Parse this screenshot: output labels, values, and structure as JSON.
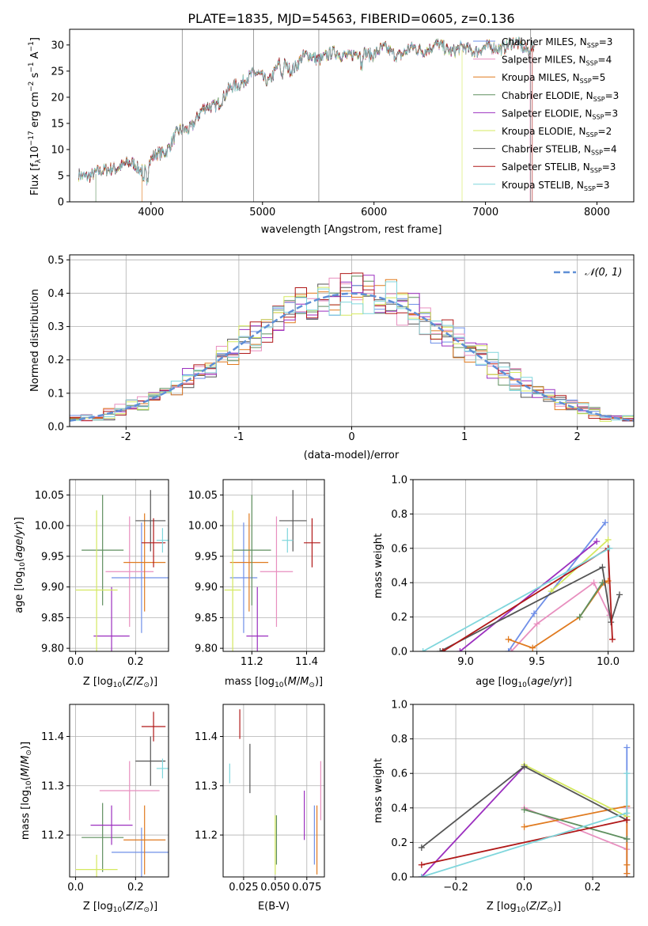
{
  "figure": {
    "title": "PLATE=1835, MJD=54563, FIBERID=0605, z=0.136"
  },
  "colors": {
    "series": [
      "#6f8fe8",
      "#e88fbf",
      "#e07a1f",
      "#5f8f5f",
      "#9b2fbf",
      "#d4e85f",
      "#555555",
      "#b01818",
      "#7fd6dc"
    ]
  },
  "chart_data": [
    {
      "id": "spectrum",
      "type": "line",
      "xlabel": "wavelength [Angstrom, rest frame]",
      "ylabel": "Flux [f_λ 10^-17 erg cm^-2 s^-1 A^-1]",
      "xlim": [
        3270,
        8330
      ],
      "ylim": [
        0,
        33
      ],
      "xticks": [
        4000,
        5000,
        6000,
        7000,
        8000
      ],
      "yticks": [
        0,
        5,
        10,
        15,
        20,
        25,
        30
      ],
      "grid": false,
      "legend_position": "right",
      "continuum": {
        "wavelength": [
          3350,
          3450,
          3550,
          3650,
          3750,
          3850,
          3950,
          4050,
          4150,
          4250,
          4350,
          4450,
          4550,
          4650,
          4750,
          4850,
          4950,
          5050,
          5150,
          5250,
          5350,
          5450,
          5550,
          5650,
          5750,
          5850,
          5950,
          6050,
          6150,
          6250,
          6350,
          6450,
          6550,
          6650,
          6750,
          6850,
          6950,
          7050,
          7150,
          7250,
          7350,
          7450
        ],
        "flux": [
          5,
          5.5,
          5.2,
          7,
          6.5,
          7.5,
          6,
          9,
          10.5,
          13,
          14.5,
          17,
          18.5,
          20,
          22,
          24,
          24,
          23.5,
          26,
          25.5,
          27.5,
          27.5,
          28,
          28,
          28.5,
          28,
          28.5,
          29,
          28.5,
          28.5,
          29,
          29.5,
          29.5,
          29.5,
          29,
          29,
          29.5,
          29,
          30,
          30,
          29.5,
          30
        ]
      },
      "series": [
        {
          "name": "Chabrier MILES, N_SSP=3"
        },
        {
          "name": "Salpeter MILES, N_SSP=4"
        },
        {
          "name": "Kroupa MILES, N_SSP=5"
        },
        {
          "name": "Chabrier ELODIE, N_SSP=3"
        },
        {
          "name": "Salpeter ELODIE, N_SSP=3"
        },
        {
          "name": "Kroupa ELODIE, N_SSP=2"
        },
        {
          "name": "Chabrier STELIB, N_SSP=4"
        },
        {
          "name": "Salpeter STELIB, N_SSP=3"
        },
        {
          "name": "Kroupa STELIB, N_SSP=3"
        }
      ]
    },
    {
      "id": "residuals",
      "type": "line",
      "xlabel": "(data-model)/error",
      "ylabel": "Normed distribution",
      "xlim": [
        -2.5,
        2.5
      ],
      "ylim": [
        0,
        0.515
      ],
      "xticks": [
        -2,
        -1,
        0,
        1,
        2
      ],
      "yticks": [
        0.0,
        0.1,
        0.2,
        0.3,
        0.4,
        0.5
      ],
      "grid": true,
      "legend_position": "top-right",
      "normal_curve_label": "N(0,1)",
      "bin_width": 0.1
    },
    {
      "id": "z-age",
      "type": "scatter",
      "xlabel": "Z [log10(Z/Z_sun)]",
      "ylabel": "age [log10(age/yr)]",
      "xlim": [
        -0.02,
        0.31
      ],
      "ylim": [
        9.795,
        10.075
      ],
      "xticks": [
        0.0,
        0.2
      ],
      "yticks": [
        9.8,
        9.85,
        9.9,
        9.95,
        10.0,
        10.05
      ],
      "grid": true,
      "points": [
        {
          "x": 0.22,
          "xerr": 0.1,
          "y": 9.915,
          "yerr": 0.09
        },
        {
          "x": 0.18,
          "xerr": 0.08,
          "y": 9.925,
          "yerr": 0.09
        },
        {
          "x": 0.23,
          "xerr": 0.07,
          "y": 9.94,
          "yerr": 0.08
        },
        {
          "x": 0.09,
          "xerr": 0.07,
          "y": 9.96,
          "yerr": 0.09
        },
        {
          "x": 0.12,
          "xerr": 0.06,
          "y": 9.82,
          "yerr": 0.08
        },
        {
          "x": 0.07,
          "xerr": 0.07,
          "y": 9.895,
          "yerr": 0.13
        },
        {
          "x": 0.25,
          "xerr": 0.05,
          "y": 10.008,
          "yerr": 0.05
        },
        {
          "x": 0.26,
          "xerr": 0.04,
          "y": 9.972,
          "yerr": 0.04
        },
        {
          "x": 0.29,
          "xerr": 0.02,
          "y": 9.976,
          "yerr": 0.02
        }
      ]
    },
    {
      "id": "mass-age",
      "type": "scatter",
      "xlabel": "mass [log10(M/M_sun)]",
      "ylabel": "",
      "xlim": [
        11.095,
        11.465
      ],
      "ylim": [
        9.795,
        10.075
      ],
      "xticks": [
        11.2,
        11.4
      ],
      "yticks": [
        9.8,
        9.85,
        9.9,
        9.95,
        10.0,
        10.05
      ],
      "grid": true,
      "points": [
        {
          "x": 11.17,
          "xerr": 0.05,
          "y": 9.915,
          "yerr": 0.09
        },
        {
          "x": 11.29,
          "xerr": 0.06,
          "y": 9.925,
          "yerr": 0.09
        },
        {
          "x": 11.19,
          "xerr": 0.07,
          "y": 9.94,
          "yerr": 0.08
        },
        {
          "x": 11.2,
          "xerr": 0.07,
          "y": 9.96,
          "yerr": 0.09
        },
        {
          "x": 11.22,
          "xerr": 0.04,
          "y": 9.82,
          "yerr": 0.08
        },
        {
          "x": 11.13,
          "xerr": 0.03,
          "y": 9.895,
          "yerr": 0.13
        },
        {
          "x": 11.35,
          "xerr": 0.05,
          "y": 10.008,
          "yerr": 0.05
        },
        {
          "x": 11.42,
          "xerr": 0.03,
          "y": 9.972,
          "yerr": 0.04
        },
        {
          "x": 11.33,
          "xerr": 0.02,
          "y": 9.976,
          "yerr": 0.02
        }
      ]
    },
    {
      "id": "age-massweight",
      "type": "line",
      "xlabel": "age [log10(age/yr)]",
      "ylabel": "mass weight",
      "xlim": [
        8.63,
        10.18
      ],
      "ylim": [
        0,
        1.0
      ],
      "xticks": [
        9.0,
        9.5,
        10.0
      ],
      "yticks": [
        0.0,
        0.2,
        0.4,
        0.6,
        0.8,
        1.0
      ],
      "grid": true,
      "series": [
        {
          "x": [
            9.3,
            9.48,
            9.98
          ],
          "y": [
            0.0,
            0.22,
            0.75
          ]
        },
        {
          "x": [
            9.32,
            9.5,
            9.9,
            10.01
          ],
          "y": [
            0.0,
            0.16,
            0.4,
            0.21
          ]
        },
        {
          "x": [
            9.3,
            9.47,
            9.8,
            9.97,
            10.0
          ],
          "y": [
            0.07,
            0.02,
            0.2,
            0.4,
            0.41
          ]
        },
        {
          "x": [
            9.8,
            9.96
          ],
          "y": [
            0.2,
            0.4
          ]
        },
        {
          "x": [
            8.96,
            9.92
          ],
          "y": [
            0.0,
            0.64
          ]
        },
        {
          "x": [
            9.6,
            10.0
          ],
          "y": [
            0.35,
            0.65
          ]
        },
        {
          "x": [
            8.82,
            9.96,
            10.02,
            10.08
          ],
          "y": [
            0.0,
            0.49,
            0.17,
            0.33
          ]
        },
        {
          "x": [
            8.84,
            10.0,
            10.03
          ],
          "y": [
            0.0,
            0.6,
            0.07
          ]
        },
        {
          "x": [
            8.7,
            10.01
          ],
          "y": [
            0.0,
            0.6
          ]
        }
      ]
    },
    {
      "id": "z-mass",
      "type": "scatter",
      "xlabel": "Z [log10(Z/Z_sun)]",
      "ylabel": "mass [log10(M/M_sun)]",
      "xlim": [
        -0.02,
        0.31
      ],
      "ylim": [
        11.115,
        11.465
      ],
      "xticks": [
        0.0,
        0.2
      ],
      "yticks": [
        11.2,
        11.3,
        11.4
      ],
      "grid": true,
      "points": [
        {
          "x": 0.22,
          "xerr": 0.1,
          "y": 11.165,
          "yerr": 0.05
        },
        {
          "x": 0.18,
          "xerr": 0.1,
          "y": 11.29,
          "yerr": 0.06
        },
        {
          "x": 0.23,
          "xerr": 0.07,
          "y": 11.19,
          "yerr": 0.07
        },
        {
          "x": 0.09,
          "xerr": 0.07,
          "y": 11.195,
          "yerr": 0.07
        },
        {
          "x": 0.12,
          "xerr": 0.07,
          "y": 11.22,
          "yerr": 0.04
        },
        {
          "x": 0.07,
          "xerr": 0.07,
          "y": 11.13,
          "yerr": 0.03
        },
        {
          "x": 0.25,
          "xerr": 0.05,
          "y": 11.35,
          "yerr": 0.05
        },
        {
          "x": 0.26,
          "xerr": 0.04,
          "y": 11.42,
          "yerr": 0.03
        },
        {
          "x": 0.29,
          "xerr": 0.02,
          "y": 11.335,
          "yerr": 0.02
        }
      ]
    },
    {
      "id": "ebv-mass",
      "type": "scatter",
      "xlabel": "E(B-V)",
      "ylabel": "",
      "xlim": [
        0.0088,
        0.0889
      ],
      "ylim": [
        11.115,
        11.465
      ],
      "xticks": [
        0.025,
        0.05,
        0.075
      ],
      "xticklabels": [
        "0.025",
        "0.050",
        "0.075"
      ],
      "yticks": [
        11.2,
        11.3,
        11.4
      ],
      "grid": true,
      "points": [
        {
          "x": 0.081,
          "y": 11.2,
          "yerr": 0.06
        },
        {
          "x": 0.086,
          "y": 11.29,
          "yerr": 0.06
        },
        {
          "x": 0.083,
          "y": 11.19,
          "yerr": 0.07
        },
        {
          "x": 0.051,
          "y": 11.19,
          "yerr": 0.05
        },
        {
          "x": 0.073,
          "y": 11.24,
          "yerr": 0.05
        },
        {
          "x": 0.05,
          "y": 11.18,
          "yerr": 0.06
        },
        {
          "x": 0.03,
          "y": 11.335,
          "yerr": 0.05
        },
        {
          "x": 0.022,
          "y": 11.425,
          "yerr": 0.03
        },
        {
          "x": 0.014,
          "y": 11.325,
          "yerr": 0.02
        }
      ]
    },
    {
      "id": "z-massweight",
      "type": "line",
      "xlabel": "Z [log10(Z/Z_sun)]",
      "ylabel": "mass weight",
      "xlim": [
        -0.325,
        0.32
      ],
      "ylim": [
        0,
        1.0
      ],
      "xticks": [
        -0.2,
        0.0,
        0.2
      ],
      "yticks": [
        0.0,
        0.2,
        0.4,
        0.6,
        0.8,
        1.0
      ],
      "grid": true,
      "series": [
        {
          "x": [
            0.3,
            0.3,
            0.3
          ],
          "y": [
            0.0,
            0.22,
            0.75
          ]
        },
        {
          "x": [
            0.0,
            0.3,
            0.3,
            0.3
          ],
          "y": [
            0.4,
            0.16,
            0.4,
            0.02
          ]
        },
        {
          "x": [
            0.0,
            0.3,
            0.3,
            0.3
          ],
          "y": [
            0.29,
            0.41,
            0.07,
            0.02
          ]
        },
        {
          "x": [
            0.0,
            0.3
          ],
          "y": [
            0.39,
            0.22
          ]
        },
        {
          "x": [
            -0.3,
            0.0
          ],
          "y": [
            0.0,
            0.64
          ]
        },
        {
          "x": [
            0.0,
            0.3
          ],
          "y": [
            0.65,
            0.35
          ]
        },
        {
          "x": [
            -0.3,
            0.0,
            0.3
          ],
          "y": [
            0.17,
            0.64,
            0.33
          ]
        },
        {
          "x": [
            -0.3,
            0.3
          ],
          "y": [
            0.07,
            0.33
          ]
        },
        {
          "x": [
            -0.3,
            0.3,
            0.3
          ],
          "y": [
            0.0,
            0.37,
            0.6
          ]
        }
      ]
    }
  ]
}
